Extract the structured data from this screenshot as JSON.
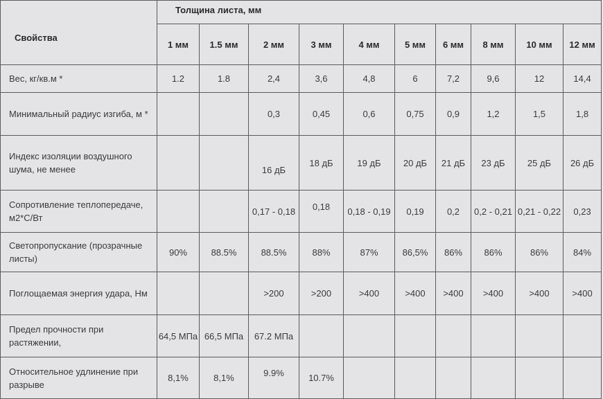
{
  "header": {
    "props_label": "Свойства",
    "group_label": "Толщина листа, мм",
    "columns": [
      "1 мм",
      "1.5 мм",
      "2 мм",
      "3 мм",
      "4 мм",
      "5 мм",
      "6 мм",
      "8 мм",
      "10 мм",
      "12 мм"
    ]
  },
  "rows": [
    {
      "label": "Вес, кг/кв.м *",
      "cells": [
        "1.2",
        "1.8",
        "2,4",
        "3,6",
        "4,8",
        "6",
        "7,2",
        "9,6",
        "12",
        "14,4"
      ]
    },
    {
      "label": "Минимальный радиус изгиба, м *",
      "cells": [
        "",
        "",
        "0,3",
        "0,45",
        "0,6",
        "0,75",
        "0,9",
        "1,2",
        "1,5",
        "1,8"
      ]
    },
    {
      "label": "Индекс изоляции воздушного шума, не менее",
      "cells": [
        "",
        "",
        "16 дБ",
        "18 дБ",
        "19 дБ",
        "20 дБ",
        "21 дБ",
        "23 дБ",
        "25 дБ",
        "26 дБ"
      ]
    },
    {
      "label": "Сопротивление теплопередаче, м2*С/Вт",
      "cells": [
        "",
        "",
        "0,17 - 0,18",
        "0,18",
        "0,18 - 0,19",
        "0,19",
        "0,2",
        "0,2 - 0,21",
        "0,21 - 0,22",
        "0,23"
      ]
    },
    {
      "label": "Светопропускание (прозрачные листы)",
      "cells": [
        "90%",
        "88.5%",
        "88.5%",
        "88%",
        "87%",
        "86,5%",
        "86%",
        "86%",
        "86%",
        "84%"
      ]
    },
    {
      "label": "Поглощаемая энергия удара, Нм",
      "cells": [
        "",
        "",
        ">200",
        ">200",
        ">400",
        ">400",
        ">400",
        ">400",
        ">400",
        ">400"
      ]
    },
    {
      "label": "Предел прочности при растяжении,",
      "cells": [
        "64,5 МПа",
        "66,5 МПа",
        "67.2 МПа",
        "",
        "",
        "",
        "",
        "",
        "",
        ""
      ]
    },
    {
      "label": "Относительное удлинение при разрыве",
      "cells": [
        "8,1%",
        "8,1%",
        "9.9%",
        "10.7%",
        "",
        "",
        "",
        "",
        "",
        ""
      ]
    }
  ]
}
